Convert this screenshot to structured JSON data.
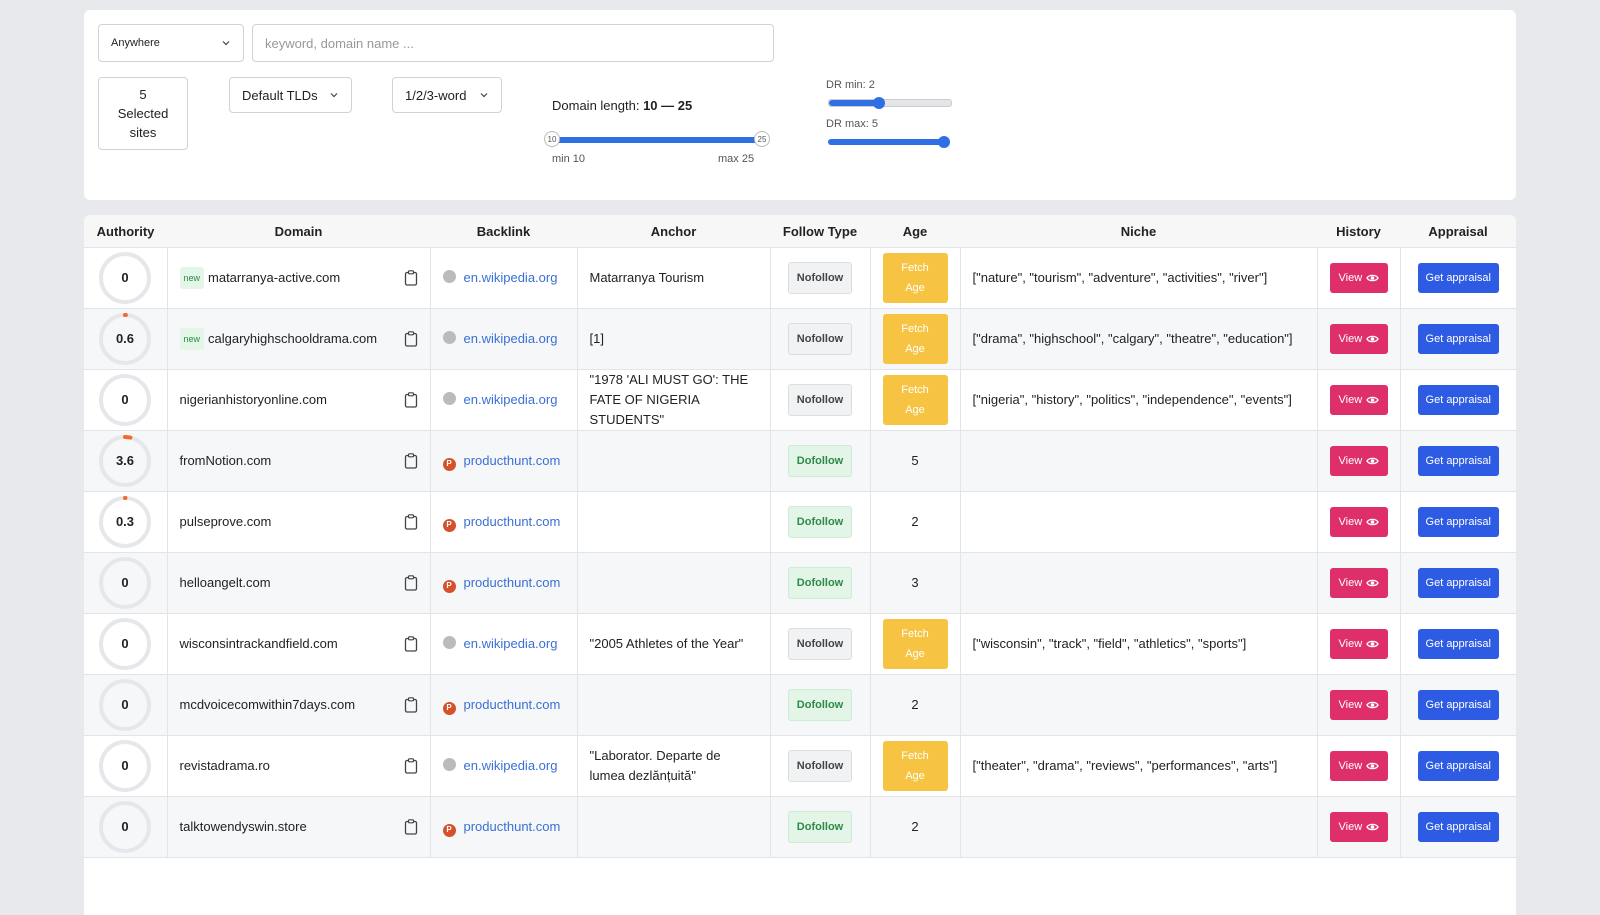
{
  "filters": {
    "location": "Anywhere",
    "search_placeholder": "keyword, domain name ...",
    "sites": "5 Selected sites",
    "tlds": "Default TLDs",
    "words": "1/2/3-word",
    "domain_length": {
      "label": "Domain length:",
      "range_text": "10 — 25",
      "min": 10,
      "max": 25,
      "min_label": "min 10",
      "max_label": "max 25"
    },
    "dr_min_label": "DR min: 2",
    "dr_max_label": "DR max: 5"
  },
  "table": {
    "headers": [
      "Authority",
      "Domain",
      "Backlink",
      "Anchor",
      "Follow Type",
      "Age",
      "Niche",
      "History",
      "Appraisal"
    ],
    "fetch_age_label": "Fetch Age",
    "view_label": "View",
    "appraisal_label": "Get appraisal",
    "rows": [
      {
        "authority": 0,
        "badge": "new",
        "domain": "matarranya-active.com",
        "backlink": "en.wikipedia.org",
        "anchor": "Matarranya Tourism",
        "follow": "Nofollow",
        "age": null,
        "niche": "[\"nature\", \"tourism\", \"adventure\", \"activities\", \"river\"]"
      },
      {
        "authority": 0.6,
        "badge": "new",
        "domain": "calgaryhighschooldrama.com",
        "backlink": "en.wikipedia.org",
        "anchor": "[1]",
        "follow": "Nofollow",
        "age": null,
        "niche": "[\"drama\", \"highschool\", \"calgary\", \"theatre\", \"education\"]"
      },
      {
        "authority": 0,
        "badge": null,
        "domain": "nigerianhistoryonline.com",
        "backlink": "en.wikipedia.org",
        "anchor": "\"1978 'ALI MUST GO': THE FATE OF NIGERIA STUDENTS\"",
        "follow": "Nofollow",
        "age": null,
        "niche": "[\"nigeria\", \"history\", \"politics\", \"independence\", \"events\"]"
      },
      {
        "authority": 3.6,
        "badge": null,
        "domain": "fromNotion.com",
        "backlink": "producthunt.com",
        "anchor": null,
        "follow": "Dofollow",
        "age": 5,
        "niche": null
      },
      {
        "authority": 0.3,
        "badge": null,
        "domain": "pulseprove.com",
        "backlink": "producthunt.com",
        "anchor": null,
        "follow": "Dofollow",
        "age": 2,
        "niche": null
      },
      {
        "authority": 0,
        "badge": null,
        "domain": "helloangelt.com",
        "backlink": "producthunt.com",
        "anchor": null,
        "follow": "Dofollow",
        "age": 3,
        "niche": null
      },
      {
        "authority": 0,
        "badge": null,
        "domain": "wisconsintrackandfield.com",
        "backlink": "en.wikipedia.org",
        "anchor": "\"2005 Athletes of the Year\"",
        "follow": "Nofollow",
        "age": null,
        "niche": "[\"wisconsin\", \"track\", \"field\", \"athletics\", \"sports\"]"
      },
      {
        "authority": 0,
        "badge": null,
        "domain": "mcdvoicecomwithin7days.com",
        "backlink": "producthunt.com",
        "anchor": null,
        "follow": "Dofollow",
        "age": 2,
        "niche": null
      },
      {
        "authority": 0,
        "badge": null,
        "domain": "revistadrama.ro",
        "backlink": "en.wikipedia.org",
        "anchor": "\"Laborator. Departe de lumea dezlănțuită\"",
        "follow": "Nofollow",
        "age": null,
        "niche": "[\"theater\", \"drama\", \"reviews\", \"performances\", \"arts\"]"
      },
      {
        "authority": 0,
        "badge": null,
        "domain": "talktowendyswin.store",
        "backlink": "producthunt.com",
        "anchor": null,
        "follow": "Dofollow",
        "age": 2,
        "niche": null
      }
    ]
  }
}
